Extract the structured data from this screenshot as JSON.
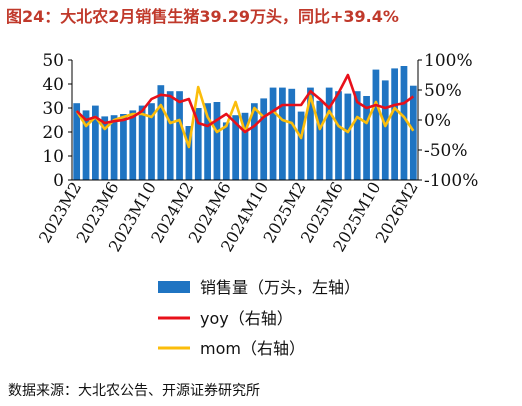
{
  "title": "图24：大北农2月销售生猪39.29万头，同比+39.4%",
  "source": "数据来源：大北农公告、开源证券研究所",
  "colors": {
    "title": "#c0392b",
    "bar": "#1f74c2",
    "yoy": "#e8101a",
    "mom": "#fbbd0b",
    "axis": "#000000"
  },
  "chart_data": {
    "type": "bar+line",
    "categories": [
      "2023M2",
      "2023M3",
      "2023M4",
      "2023M5",
      "2023M6",
      "2023M7",
      "2023M8",
      "2023M9",
      "2023M10",
      "2023M11",
      "2023M12",
      "2024M1",
      "2024M2",
      "2024M3",
      "2024M4",
      "2024M5",
      "2024M6",
      "2024M7",
      "2024M8",
      "2024M9",
      "2024M10",
      "2024M11",
      "2024M12",
      "2025M1",
      "2025M2",
      "2025M3",
      "2025M4",
      "2025M5",
      "2025M6",
      "2025M7",
      "2025M8",
      "2025M9",
      "2025M10",
      "2025M11",
      "2025M12",
      "2026M1",
      "2026M2"
    ],
    "x_tick_labels": [
      "2023M2",
      "2023M6",
      "2023M10",
      "2024M2",
      "2024M6",
      "2024M10",
      "2025M2",
      "2025M6",
      "2025M10",
      "2026M2"
    ],
    "left_axis": {
      "min": 0,
      "max": 50,
      "ticks": [
        "0",
        "10",
        "20",
        "30",
        "40",
        "50"
      ]
    },
    "right_axis": {
      "min": -100,
      "max": 100,
      "ticks": [
        "100%",
        "50%",
        "0%",
        "-50%",
        "-100%"
      ]
    },
    "series": [
      {
        "name": "销售量（万头，左轴）",
        "type": "bar",
        "axis": "left",
        "values": [
          32.0,
          29.0,
          31.0,
          26.5,
          27.0,
          27.5,
          29.0,
          31.0,
          32.0,
          39.5,
          37.0,
          37.0,
          22.5,
          30.0,
          32.0,
          32.5,
          24.0,
          27.0,
          28.0,
          32.0,
          34.0,
          38.5,
          38.5,
          38.0,
          28.5,
          38.5,
          33.0,
          38.5,
          37.0,
          36.0,
          37.0,
          35.0,
          46.0,
          41.5,
          46.5,
          47.5,
          39.29
        ]
      },
      {
        "name": "yoy（右轴）",
        "type": "line",
        "axis": "right",
        "values": [
          15,
          0,
          5,
          -5,
          -2,
          0,
          5,
          15,
          35,
          42,
          40,
          30,
          35,
          -5,
          -10,
          0,
          10,
          -5,
          -20,
          -10,
          5,
          15,
          25,
          25,
          25,
          48,
          35,
          20,
          45,
          75,
          30,
          20,
          25,
          20,
          25,
          28,
          39.4
        ]
      },
      {
        "name": "mom（右轴）",
        "type": "line",
        "axis": "right",
        "values": [
          15,
          -10,
          5,
          -15,
          0,
          5,
          10,
          10,
          5,
          25,
          -5,
          0,
          -45,
          55,
          5,
          -20,
          -10,
          30,
          -20,
          20,
          5,
          15,
          0,
          -5,
          -30,
          40,
          -15,
          15,
          -10,
          -20,
          5,
          -5,
          30,
          -10,
          20,
          5,
          -18
        ]
      }
    ],
    "legend_position": "bottom"
  }
}
